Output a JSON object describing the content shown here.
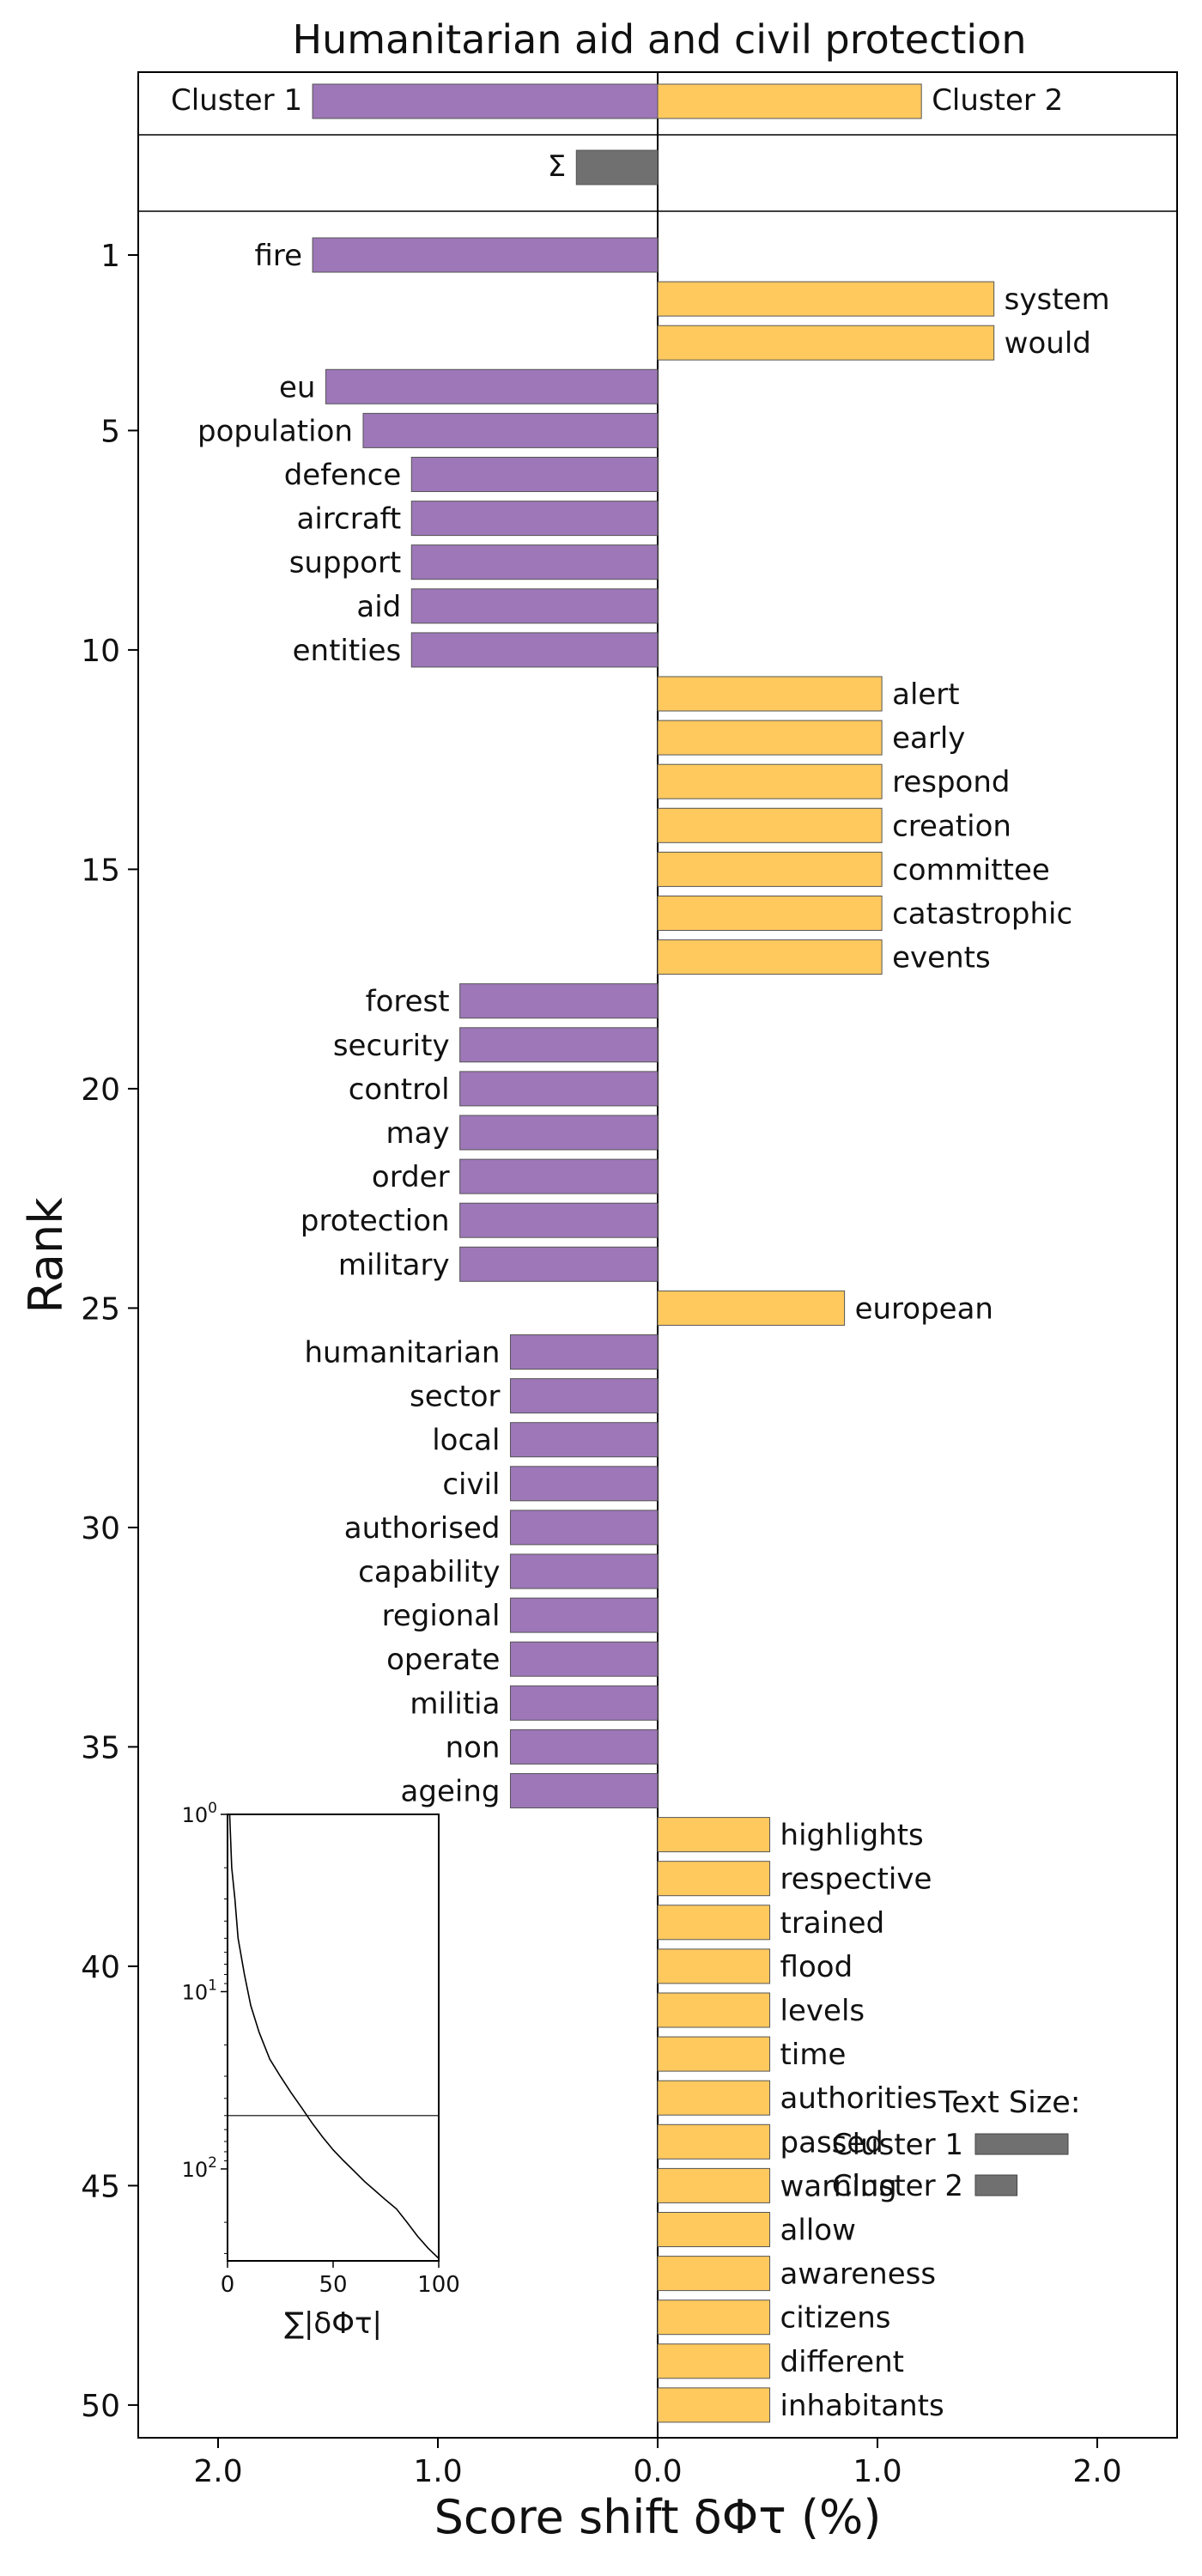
{
  "chart_data": {
    "type": "bar",
    "title": "Humanitarian aid and civil protection",
    "xlabel": "Score shift δΦτ (%)",
    "ylabel": "Rank",
    "xlim": [
      -2.0,
      2.0
    ],
    "x_tick_values": [
      -2.0,
      -1.0,
      0.0,
      1.0,
      2.0
    ],
    "x_tick_labels": [
      "2.0",
      "1.0",
      "0.0",
      "1.0",
      "2.0"
    ],
    "y_tick_ranks": [
      1,
      5,
      10,
      15,
      20,
      25,
      30,
      35,
      40,
      45,
      50
    ],
    "y_tick_labels": [
      "1",
      "5",
      "10",
      "15",
      "20",
      "25",
      "30",
      "35",
      "40",
      "45",
      "50"
    ],
    "colors": {
      "cluster1": "#9d77b8",
      "cluster2": "#ffc95e",
      "sum": "#707070",
      "edge": "#555555"
    },
    "totals": {
      "cluster1_label": "Cluster 1",
      "cluster1_value": -1.57,
      "cluster2_label": "Cluster 2",
      "cluster2_value": 1.2,
      "sum_label": "Σ",
      "sum_value": -0.37
    },
    "words": [
      {
        "rank": 1,
        "word": "fire",
        "value": -1.57
      },
      {
        "rank": 2,
        "word": "system",
        "value": 1.53
      },
      {
        "rank": 3,
        "word": "would",
        "value": 1.53
      },
      {
        "rank": 4,
        "word": "eu",
        "value": -1.51
      },
      {
        "rank": 5,
        "word": "population",
        "value": -1.34
      },
      {
        "rank": 6,
        "word": "defence",
        "value": -1.12
      },
      {
        "rank": 7,
        "word": "aircraft",
        "value": -1.12
      },
      {
        "rank": 8,
        "word": "support",
        "value": -1.12
      },
      {
        "rank": 9,
        "word": "aid",
        "value": -1.12
      },
      {
        "rank": 10,
        "word": "entities",
        "value": -1.12
      },
      {
        "rank": 11,
        "word": "alert",
        "value": 1.02
      },
      {
        "rank": 12,
        "word": "early",
        "value": 1.02
      },
      {
        "rank": 13,
        "word": "respond",
        "value": 1.02
      },
      {
        "rank": 14,
        "word": "creation",
        "value": 1.02
      },
      {
        "rank": 15,
        "word": "committee",
        "value": 1.02
      },
      {
        "rank": 16,
        "word": "catastrophic",
        "value": 1.02
      },
      {
        "rank": 17,
        "word": "events",
        "value": 1.02
      },
      {
        "rank": 18,
        "word": "forest",
        "value": -0.9
      },
      {
        "rank": 19,
        "word": "security",
        "value": -0.9
      },
      {
        "rank": 20,
        "word": "control",
        "value": -0.9
      },
      {
        "rank": 21,
        "word": "may",
        "value": -0.9
      },
      {
        "rank": 22,
        "word": "order",
        "value": -0.9
      },
      {
        "rank": 23,
        "word": "protection",
        "value": -0.9
      },
      {
        "rank": 24,
        "word": "military",
        "value": -0.9
      },
      {
        "rank": 25,
        "word": "european",
        "value": 0.85
      },
      {
        "rank": 26,
        "word": "humanitarian",
        "value": -0.67
      },
      {
        "rank": 27,
        "word": "sector",
        "value": -0.67
      },
      {
        "rank": 28,
        "word": "local",
        "value": -0.67
      },
      {
        "rank": 29,
        "word": "civil",
        "value": -0.67
      },
      {
        "rank": 30,
        "word": "authorised",
        "value": -0.67
      },
      {
        "rank": 31,
        "word": "capability",
        "value": -0.67
      },
      {
        "rank": 32,
        "word": "regional",
        "value": -0.67
      },
      {
        "rank": 33,
        "word": "operate",
        "value": -0.67
      },
      {
        "rank": 34,
        "word": "militia",
        "value": -0.67
      },
      {
        "rank": 35,
        "word": "non",
        "value": -0.67
      },
      {
        "rank": 36,
        "word": "ageing",
        "value": -0.67
      },
      {
        "rank": 37,
        "word": "highlights",
        "value": 0.51
      },
      {
        "rank": 38,
        "word": "respective",
        "value": 0.51
      },
      {
        "rank": 39,
        "word": "trained",
        "value": 0.51
      },
      {
        "rank": 40,
        "word": "flood",
        "value": 0.51
      },
      {
        "rank": 41,
        "word": "levels",
        "value": 0.51
      },
      {
        "rank": 42,
        "word": "time",
        "value": 0.51
      },
      {
        "rank": 43,
        "word": "authorities",
        "value": 0.51
      },
      {
        "rank": 44,
        "word": "passed",
        "value": 0.51
      },
      {
        "rank": 45,
        "word": "warning",
        "value": 0.51
      },
      {
        "rank": 46,
        "word": "allow",
        "value": 0.51
      },
      {
        "rank": 47,
        "word": "awareness",
        "value": 0.51
      },
      {
        "rank": 48,
        "word": "citizens",
        "value": 0.51
      },
      {
        "rank": 49,
        "word": "different",
        "value": 0.51
      },
      {
        "rank": 50,
        "word": "inhabitants",
        "value": 0.51
      }
    ],
    "inset": {
      "xlabel": "∑|δΦτ|",
      "x_ticks": [
        0,
        50,
        100
      ],
      "xlim": [
        0,
        100
      ],
      "y_scale": "log",
      "y_ticks": [
        1,
        10,
        100
      ],
      "y_tick_labels": [
        {
          "base": "10",
          "exp": "0"
        },
        {
          "base": "10",
          "exp": "1"
        },
        {
          "base": "10",
          "exp": "2"
        }
      ],
      "ylim": [
        1,
        330
      ],
      "reference_rank": 50,
      "curve": [
        {
          "x": 1,
          "rank": 1
        },
        {
          "x": 2,
          "rank": 2
        },
        {
          "x": 3.5,
          "rank": 3
        },
        {
          "x": 5,
          "rank": 5
        },
        {
          "x": 8,
          "rank": 8
        },
        {
          "x": 11,
          "rank": 12
        },
        {
          "x": 15,
          "rank": 17
        },
        {
          "x": 20,
          "rank": 24
        },
        {
          "x": 25,
          "rank": 30
        },
        {
          "x": 30,
          "rank": 37
        },
        {
          "x": 35,
          "rank": 45
        },
        {
          "x": 40,
          "rank": 55
        },
        {
          "x": 45,
          "rank": 66
        },
        {
          "x": 50,
          "rank": 78
        },
        {
          "x": 55,
          "rank": 90
        },
        {
          "x": 60,
          "rank": 103
        },
        {
          "x": 65,
          "rank": 118
        },
        {
          "x": 70,
          "rank": 133
        },
        {
          "x": 75,
          "rank": 150
        },
        {
          "x": 80,
          "rank": 168
        },
        {
          "x": 85,
          "rank": 200
        },
        {
          "x": 90,
          "rank": 240
        },
        {
          "x": 95,
          "rank": 280
        },
        {
          "x": 100,
          "rank": 320
        }
      ]
    },
    "text_size_legend": {
      "title": "Text Size:",
      "items": [
        {
          "label": "Cluster 1",
          "relative_size": 1.0
        },
        {
          "label": "Cluster 2",
          "relative_size": 0.45
        }
      ]
    }
  }
}
